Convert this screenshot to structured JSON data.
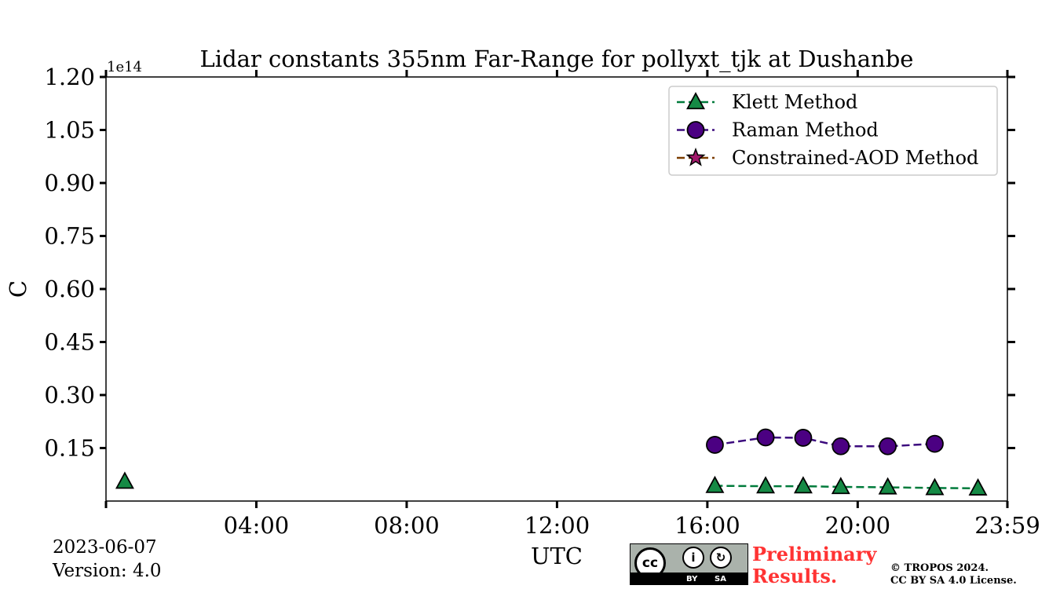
{
  "chart_data": {
    "type": "line",
    "title": "Lidar constants 355nm Far-Range for pollyxt_tjk at Dushanbe",
    "xlabel": "UTC",
    "ylabel": "C",
    "y_offset_label": "1e14",
    "y_scale": 100000000000000.0,
    "xlim": [
      0,
      23.983
    ],
    "ylim": [
      0,
      1.2
    ],
    "x_ticks": [
      4,
      8,
      12,
      16,
      20,
      23.983
    ],
    "x_tick_labels": [
      "04:00",
      "08:00",
      "12:00",
      "16:00",
      "20:00",
      "23:59"
    ],
    "y_ticks": [
      0.15,
      0.3,
      0.45,
      0.6,
      0.75,
      0.9,
      1.05,
      1.2
    ],
    "y_tick_labels": [
      "0.15",
      "0.30",
      "0.45",
      "0.60",
      "0.75",
      "0.90",
      "1.05",
      "1.20"
    ],
    "legend_position": "top-right",
    "series": [
      {
        "name": "Klett Method",
        "color": "#007b3b",
        "fill": "#158a45",
        "marker": "triangle",
        "points": [
          {
            "x": 0.5,
            "y": 0.055
          },
          {
            "x": 16.2,
            "y": 0.043
          },
          {
            "x": 17.55,
            "y": 0.042
          },
          {
            "x": 18.55,
            "y": 0.042
          },
          {
            "x": 19.55,
            "y": 0.04
          },
          {
            "x": 20.8,
            "y": 0.039
          },
          {
            "x": 22.05,
            "y": 0.037
          },
          {
            "x": 23.2,
            "y": 0.036
          }
        ]
      },
      {
        "name": "Raman Method",
        "color": "#3b0a7d",
        "fill": "#4b0082",
        "marker": "circle",
        "points": [
          {
            "x": 16.2,
            "y": 0.159
          },
          {
            "x": 17.55,
            "y": 0.18
          },
          {
            "x": 18.55,
            "y": 0.179
          },
          {
            "x": 19.55,
            "y": 0.155
          },
          {
            "x": 20.8,
            "y": 0.155
          },
          {
            "x": 22.05,
            "y": 0.162
          }
        ]
      },
      {
        "name": "Constrained-AOD Method",
        "color": "#7b3d00",
        "fill": "#a0186a",
        "marker": "star",
        "points": []
      }
    ]
  },
  "footer": {
    "date": "2023-06-07",
    "version": "Version: 4.0",
    "badge": {
      "cc": "cc",
      "by": "BY",
      "sa": "SA"
    },
    "preliminary_line1": "Preliminary",
    "preliminary_line2": "Results.",
    "copyright_line1": "© TROPOS 2024.",
    "copyright_line2": "CC BY SA 4.0 License."
  }
}
